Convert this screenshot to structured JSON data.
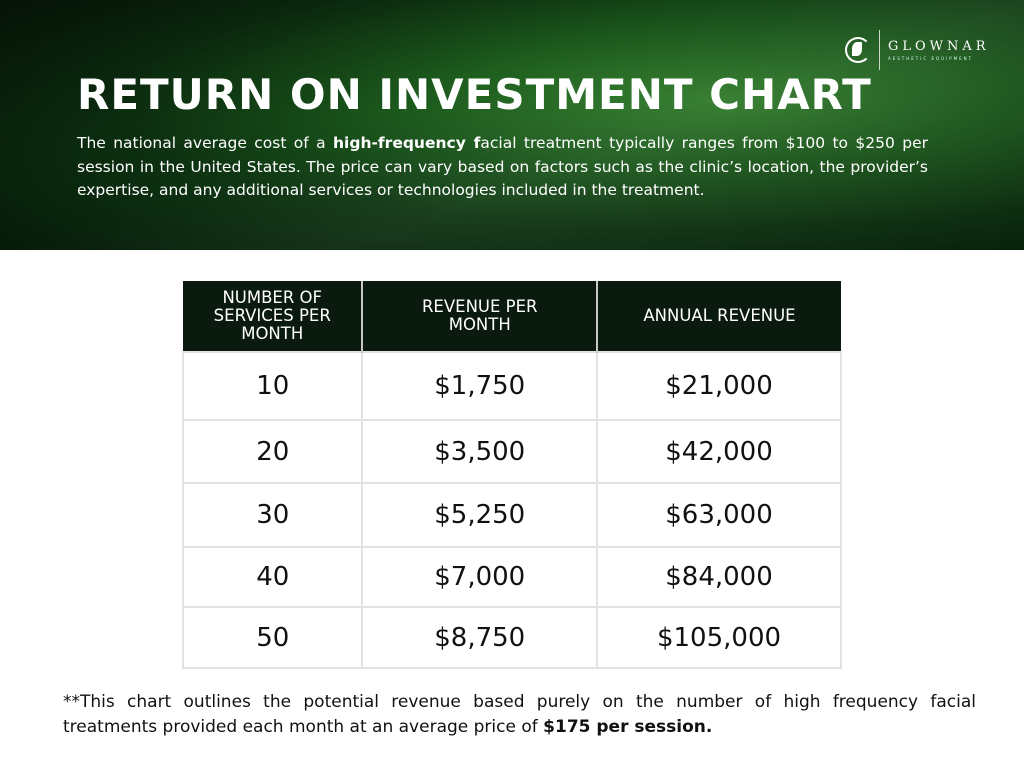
{
  "brand": {
    "name": "GLOWNAR",
    "tagline": "AESTHETIC EQUIPMENT"
  },
  "title": "RETURN ON INVESTMENT CHART",
  "intro": {
    "before": "The national average cost of a ",
    "bold": "high-frequency f",
    "after": "acial treatment typically ranges from $100 to $250 per session in the United States. The price can vary based on factors such as the clinic’s location, the provider’s expertise, and any additional services or technologies included in the treatment."
  },
  "table": {
    "headers": [
      "NUMBER OF SERVICES PER MONTH",
      "REVENUE PER MONTH",
      "ANNUAL REVENUE"
    ],
    "rows": [
      [
        "10",
        "$1,750",
        "$21,000"
      ],
      [
        "20",
        "$3,500",
        "$42,000"
      ],
      [
        "30",
        "$5,250",
        "$63,000"
      ],
      [
        "40",
        "$7,000",
        "$84,000"
      ],
      [
        "50",
        "$8,750",
        "$105,000"
      ]
    ]
  },
  "note": {
    "text": "**This chart outlines the potential revenue based purely on the number of high frequency facial treatments provided each month at an average price of ",
    "bold": "$175 per session."
  }
}
